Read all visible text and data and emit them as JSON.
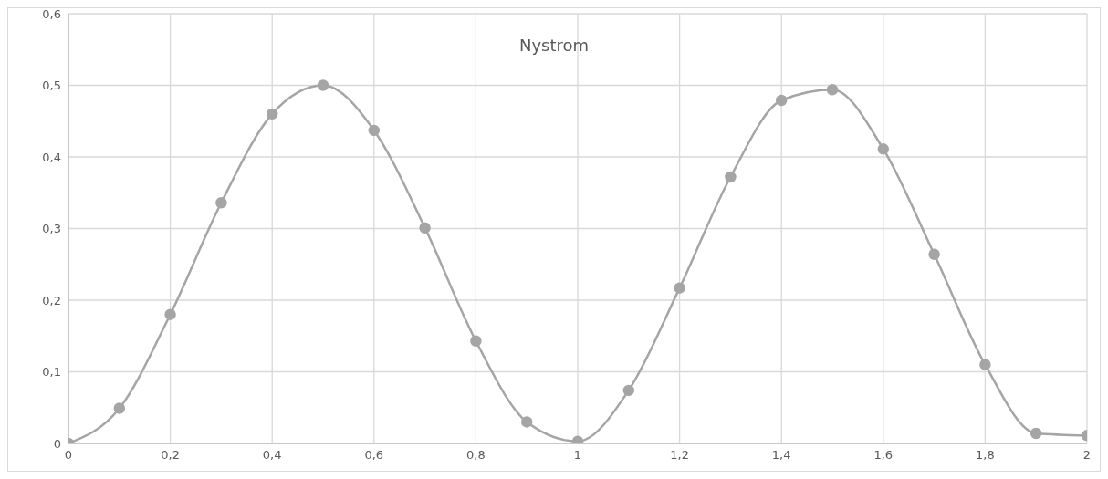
{
  "chart_data": {
    "type": "line",
    "title": "Nystrom",
    "x": [
      0,
      0.1,
      0.2,
      0.3,
      0.4,
      0.5,
      0.6,
      0.7,
      0.8,
      0.9,
      1.0,
      1.1,
      1.2,
      1.3,
      1.4,
      1.5,
      1.6,
      1.7,
      1.8,
      1.9,
      2.0
    ],
    "series": [
      {
        "color": "#a5a5a5",
        "values": [
          0,
          0.049,
          0.18,
          0.336,
          0.46,
          0.5,
          0.437,
          0.301,
          0.143,
          0.03,
          0.003,
          0.074,
          0.217,
          0.372,
          0.479,
          0.494,
          0.411,
          0.264,
          0.11,
          0.014,
          0.011
        ]
      }
    ],
    "xlim": [
      0,
      2
    ],
    "xticks": [
      0,
      {
        "value": 0.2,
        "label": "0,2"
      },
      {
        "value": 0.4,
        "label": "0,4"
      },
      {
        "value": 0.6,
        "label": "0,6"
      },
      {
        "value": 0.8,
        "label": "0,8"
      },
      1,
      {
        "value": 1.2,
        "label": "1,2"
      },
      {
        "value": 1.4,
        "label": "1,4"
      },
      {
        "value": 1.6,
        "label": "1,6"
      },
      {
        "value": 1.8,
        "label": "1,8"
      },
      2
    ],
    "ylim": [
      0,
      0.6
    ],
    "yticks": [
      0,
      {
        "value": 0.1,
        "label": "0,1"
      },
      {
        "value": 0.2,
        "label": "0,2"
      },
      {
        "value": 0.3,
        "label": "0,3"
      },
      {
        "value": 0.4,
        "label": "0,4"
      },
      {
        "value": 0.5,
        "label": "0,5"
      },
      {
        "value": 0.6,
        "label": "0,6"
      }
    ],
    "grid": true,
    "legend": false,
    "marker": "circle",
    "line_style": "solid"
  }
}
